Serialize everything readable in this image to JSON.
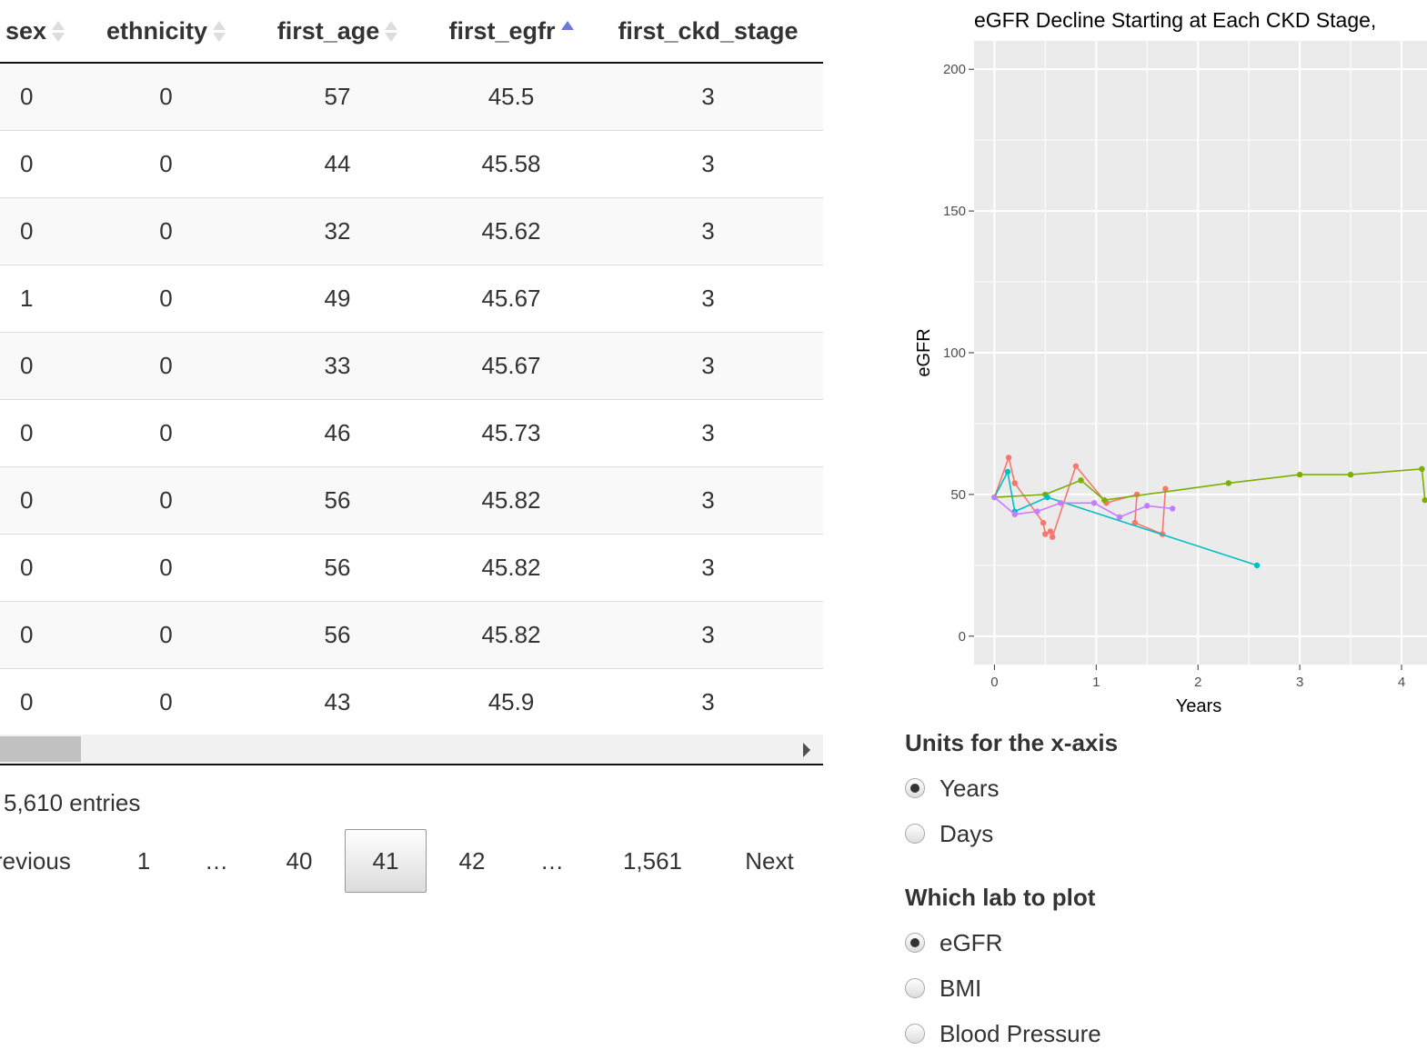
{
  "table": {
    "columns": [
      {
        "label": "sex",
        "sort": "none",
        "align": "left"
      },
      {
        "label": "ethnicity",
        "sort": "none",
        "align": "center"
      },
      {
        "label": "first_age",
        "sort": "none",
        "align": "center"
      },
      {
        "label": "first_egfr",
        "sort": "asc",
        "align": "center"
      },
      {
        "label": "first_ckd_stage",
        "sort": "",
        "align": "center"
      }
    ],
    "rows": [
      [
        "0",
        "0",
        "57",
        "45.5",
        "3"
      ],
      [
        "0",
        "0",
        "44",
        "45.58",
        "3"
      ],
      [
        "0",
        "0",
        "32",
        "45.62",
        "3"
      ],
      [
        "1",
        "0",
        "49",
        "45.67",
        "3"
      ],
      [
        "0",
        "0",
        "33",
        "45.67",
        "3"
      ],
      [
        "0",
        "0",
        "46",
        "45.73",
        "3"
      ],
      [
        "0",
        "0",
        "56",
        "45.82",
        "3"
      ],
      [
        "0",
        "0",
        "56",
        "45.82",
        "3"
      ],
      [
        "0",
        "0",
        "56",
        "45.82",
        "3"
      ],
      [
        "0",
        "0",
        "43",
        "45.9",
        "3"
      ]
    ]
  },
  "info_text": "5,610 entries",
  "pagination": {
    "previous": "revious",
    "first": "1",
    "ellipsis_left": "…",
    "prev_page": "40",
    "current": "41",
    "next_page": "42",
    "ellipsis_right": "…",
    "last": "1,561",
    "next": "Next"
  },
  "chart_data": {
    "type": "line",
    "title": "eGFR Decline Starting at Each CKD Stage,",
    "xlabel": "Years",
    "ylabel": "eGFR",
    "xlim": [
      -0.2,
      4.25
    ],
    "ylim": [
      -10,
      210
    ],
    "xticks": [
      "0",
      "1",
      "2",
      "3",
      "4"
    ],
    "yticks": [
      "0",
      "50",
      "100",
      "150",
      "200"
    ],
    "background": "#ebebeb",
    "grid": true,
    "series": [
      {
        "color": "#f8766d",
        "x": [
          0,
          0.14,
          0.2,
          0.48,
          0.5,
          0.55,
          0.57,
          0.8,
          1.1,
          1.4,
          1.38,
          1.65,
          1.68
        ],
        "y": [
          49,
          63,
          54,
          40,
          36,
          37,
          35,
          60,
          47,
          50,
          40,
          36,
          52
        ]
      },
      {
        "color": "#7cae00",
        "x": [
          0,
          0.5,
          0.85,
          1.08,
          2.3,
          3.0,
          3.5,
          4.2,
          4.23
        ],
        "y": [
          49,
          50,
          55,
          48,
          54,
          57,
          57,
          59,
          48
        ]
      },
      {
        "color": "#00bfc4",
        "x": [
          0,
          0.13,
          0.2,
          0.52,
          2.58
        ],
        "y": [
          49,
          58,
          44,
          49,
          25
        ]
      },
      {
        "color": "#c77cff",
        "x": [
          0,
          0.2,
          0.42,
          0.65,
          0.98,
          1.23,
          1.5,
          1.75
        ],
        "y": [
          49,
          43,
          44,
          47,
          47,
          42,
          46,
          45
        ]
      }
    ]
  },
  "controls": {
    "x_units": {
      "label": "Units for the x-axis",
      "options": [
        {
          "label": "Years",
          "checked": true
        },
        {
          "label": "Days",
          "checked": false
        }
      ]
    },
    "lab": {
      "label": "Which lab to plot",
      "options": [
        {
          "label": "eGFR",
          "checked": true
        },
        {
          "label": "BMI",
          "checked": false
        },
        {
          "label": "Blood Pressure",
          "checked": false
        }
      ]
    }
  }
}
